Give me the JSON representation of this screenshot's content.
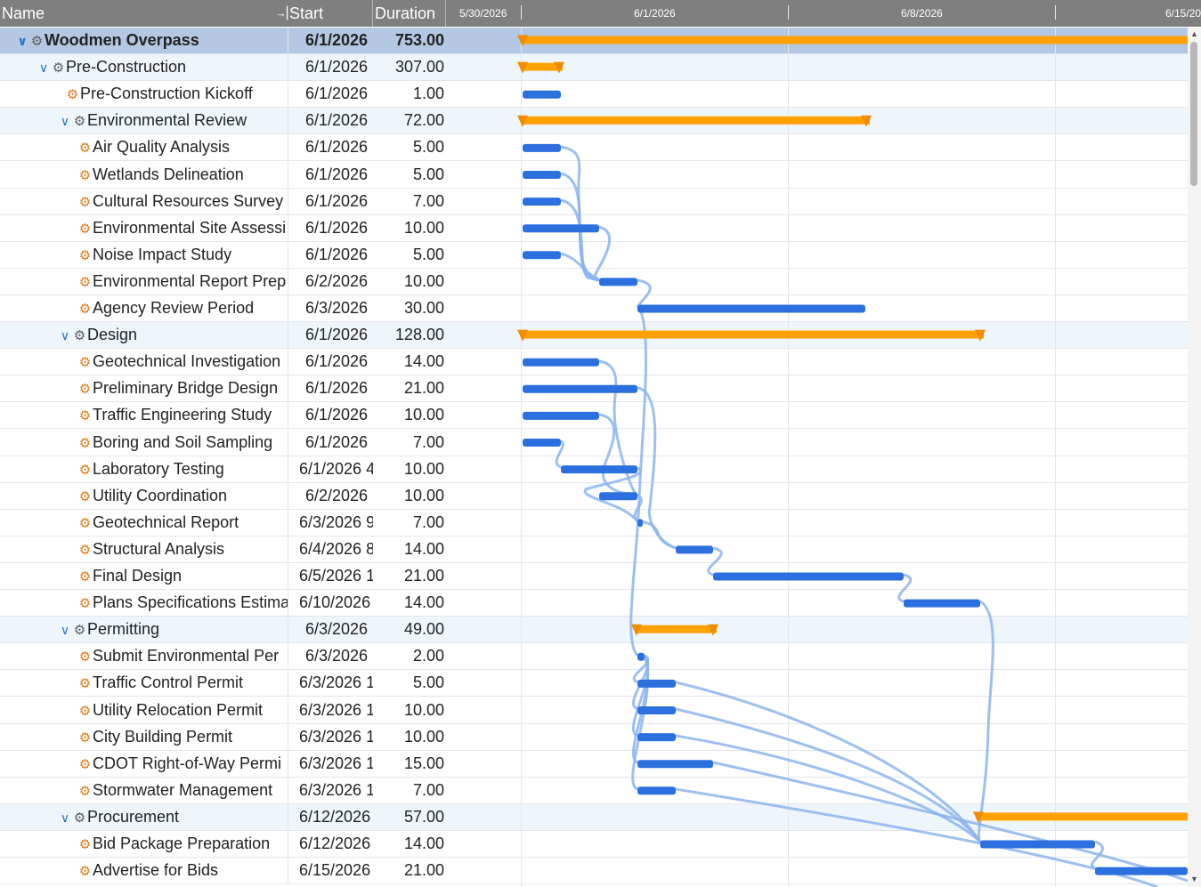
{
  "header": {
    "name_label": "Name",
    "start_label": "Start",
    "duration_label": "Duration",
    "pin_icon": "pin-icon"
  },
  "timeline": {
    "dates": [
      "5/30/2026",
      "6/1/2026",
      "6/8/2026",
      "6/15/20"
    ]
  },
  "colors": {
    "summary_bar": "#ffa200",
    "task_bar": "#2c70e0",
    "link": "#8db4ee",
    "root_row": "#b4c8e3",
    "summary_row": "#eef6fc"
  },
  "rows": [
    {
      "name": "Woodmen Overpass",
      "start": "6/1/2026",
      "duration": "753.00",
      "level": 0,
      "type": "root",
      "expanded": true
    },
    {
      "name": "Pre-Construction",
      "start": "6/1/2026",
      "duration": "307.00",
      "level": 1,
      "type": "summary",
      "expanded": true
    },
    {
      "name": "Pre-Construction Kickoff",
      "start": "6/1/2026",
      "duration": "1.00",
      "level": 2,
      "type": "task"
    },
    {
      "name": "Environmental Review",
      "start": "6/1/2026",
      "duration": "72.00",
      "level": 2,
      "type": "summary",
      "expanded": true
    },
    {
      "name": "Air Quality Analysis",
      "start": "6/1/2026",
      "duration": "5.00",
      "level": 3,
      "type": "task"
    },
    {
      "name": "Wetlands Delineation",
      "start": "6/1/2026",
      "duration": "5.00",
      "level": 3,
      "type": "task"
    },
    {
      "name": "Cultural Resources Survey",
      "start": "6/1/2026",
      "duration": "7.00",
      "level": 3,
      "type": "task"
    },
    {
      "name": "Environmental Site Assessi",
      "start": "6/1/2026",
      "duration": "10.00",
      "level": 3,
      "type": "task"
    },
    {
      "name": "Noise Impact Study",
      "start": "6/1/2026",
      "duration": "5.00",
      "level": 3,
      "type": "task"
    },
    {
      "name": "Environmental Report Prep",
      "start": "6/2/2026",
      "duration": "10.00",
      "level": 3,
      "type": "task"
    },
    {
      "name": "Agency Review Period",
      "start": "6/3/2026",
      "duration": "30.00",
      "level": 3,
      "type": "task"
    },
    {
      "name": "Design",
      "start": "6/1/2026",
      "duration": "128.00",
      "level": 2,
      "type": "summary",
      "expanded": true
    },
    {
      "name": "Geotechnical Investigation",
      "start": "6/1/2026",
      "duration": "14.00",
      "level": 3,
      "type": "task"
    },
    {
      "name": "Preliminary Bridge Design",
      "start": "6/1/2026",
      "duration": "21.00",
      "level": 3,
      "type": "task"
    },
    {
      "name": "Traffic Engineering Study",
      "start": "6/1/2026",
      "duration": "10.00",
      "level": 3,
      "type": "task"
    },
    {
      "name": "Boring and Soil Sampling",
      "start": "6/1/2026",
      "duration": "7.00",
      "level": 3,
      "type": "task"
    },
    {
      "name": "Laboratory Testing",
      "start": "6/1/2026 4",
      "duration": "10.00",
      "level": 3,
      "type": "task"
    },
    {
      "name": "Utility Coordination",
      "start": "6/2/2026",
      "duration": "10.00",
      "level": 3,
      "type": "task"
    },
    {
      "name": "Geotechnical Report",
      "start": "6/3/2026 9",
      "duration": "7.00",
      "level": 3,
      "type": "task"
    },
    {
      "name": "Structural Analysis",
      "start": "6/4/2026 8",
      "duration": "14.00",
      "level": 3,
      "type": "task"
    },
    {
      "name": "Final Design",
      "start": "6/5/2026 1",
      "duration": "21.00",
      "level": 3,
      "type": "task"
    },
    {
      "name": "Plans Specifications Estima",
      "start": "6/10/2026",
      "duration": "14.00",
      "level": 3,
      "type": "task"
    },
    {
      "name": "Permitting",
      "start": "6/3/2026",
      "duration": "49.00",
      "level": 2,
      "type": "summary",
      "expanded": true
    },
    {
      "name": "Submit Environmental Per",
      "start": "6/3/2026",
      "duration": "2.00",
      "level": 3,
      "type": "task"
    },
    {
      "name": "Traffic Control Permit",
      "start": "6/3/2026 1",
      "duration": "5.00",
      "level": 3,
      "type": "task"
    },
    {
      "name": "Utility Relocation Permit",
      "start": "6/3/2026 1",
      "duration": "10.00",
      "level": 3,
      "type": "task"
    },
    {
      "name": "City Building Permit",
      "start": "6/3/2026 1",
      "duration": "10.00",
      "level": 3,
      "type": "task"
    },
    {
      "name": "CDOT Right-of-Way Permi",
      "start": "6/3/2026 1",
      "duration": "15.00",
      "level": 3,
      "type": "task"
    },
    {
      "name": "Stormwater Management",
      "start": "6/3/2026 1",
      "duration": "7.00",
      "level": 3,
      "type": "task"
    },
    {
      "name": "Procurement",
      "start": "6/12/2026",
      "duration": "57.00",
      "level": 2,
      "type": "summary",
      "expanded": true
    },
    {
      "name": "Bid Package Preparation",
      "start": "6/12/2026",
      "duration": "14.00",
      "level": 3,
      "type": "task"
    },
    {
      "name": "Advertise for Bids",
      "start": "6/15/2026",
      "duration": "21.00",
      "level": 3,
      "type": "task"
    }
  ],
  "scrollbar": {
    "up_icon": "scroll-up-arrow-icon",
    "down_icon": "scroll-down-arrow-icon"
  }
}
